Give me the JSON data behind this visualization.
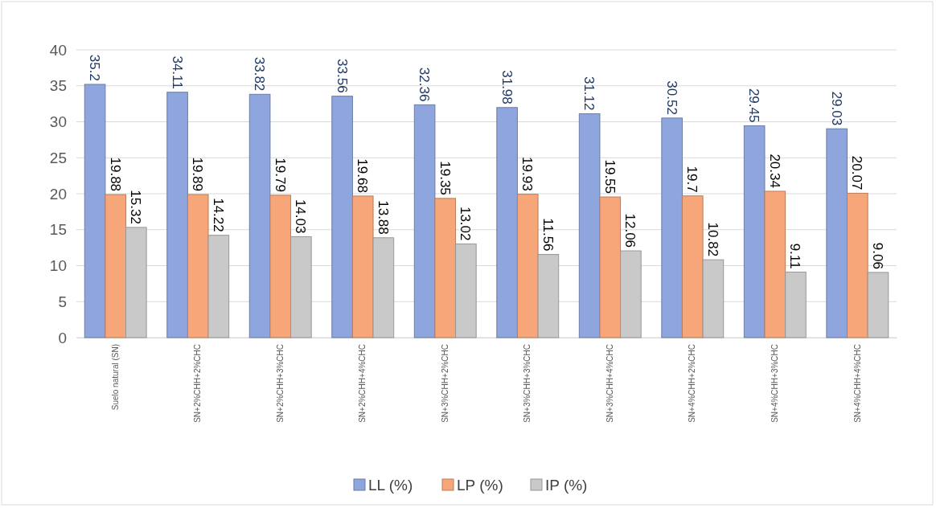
{
  "chart_data": {
    "type": "bar",
    "categories": [
      "Suelo natural (SN)",
      "SN+2%CHH+2%CHC",
      "SN+2%CHH+3%CHC",
      "SN+2%CHH+4%CHC",
      "SN+3%CHH+2%CHC",
      "SN+3%CHH+3%CHC",
      "SN+3%CHH+4%CHC",
      "SN+4%CHH+2%CHC",
      "SN+4%CHH+3%CHC",
      "SN+4%CHH+4%CHC"
    ],
    "series": [
      {
        "name": "LL (%)",
        "color": "#8ea5dd",
        "values": [
          35.2,
          34.11,
          33.82,
          33.56,
          32.36,
          31.98,
          31.12,
          30.52,
          29.45,
          29.03
        ]
      },
      {
        "name": "LP (%)",
        "color": "#f7a679",
        "values": [
          19.88,
          19.89,
          19.79,
          19.68,
          19.35,
          19.93,
          19.55,
          19.7,
          20.34,
          20.07
        ]
      },
      {
        "name": "IP (%)",
        "color": "#c9c9c9",
        "values": [
          15.32,
          14.22,
          14.03,
          13.88,
          13.02,
          11.56,
          12.06,
          10.82,
          9.11,
          9.06
        ]
      }
    ],
    "ylim": [
      0,
      40
    ],
    "yticks": [
      0,
      5,
      10,
      15,
      20,
      25,
      30,
      35,
      40
    ],
    "grid": "y",
    "legend": "bottom",
    "data_labels": true
  }
}
